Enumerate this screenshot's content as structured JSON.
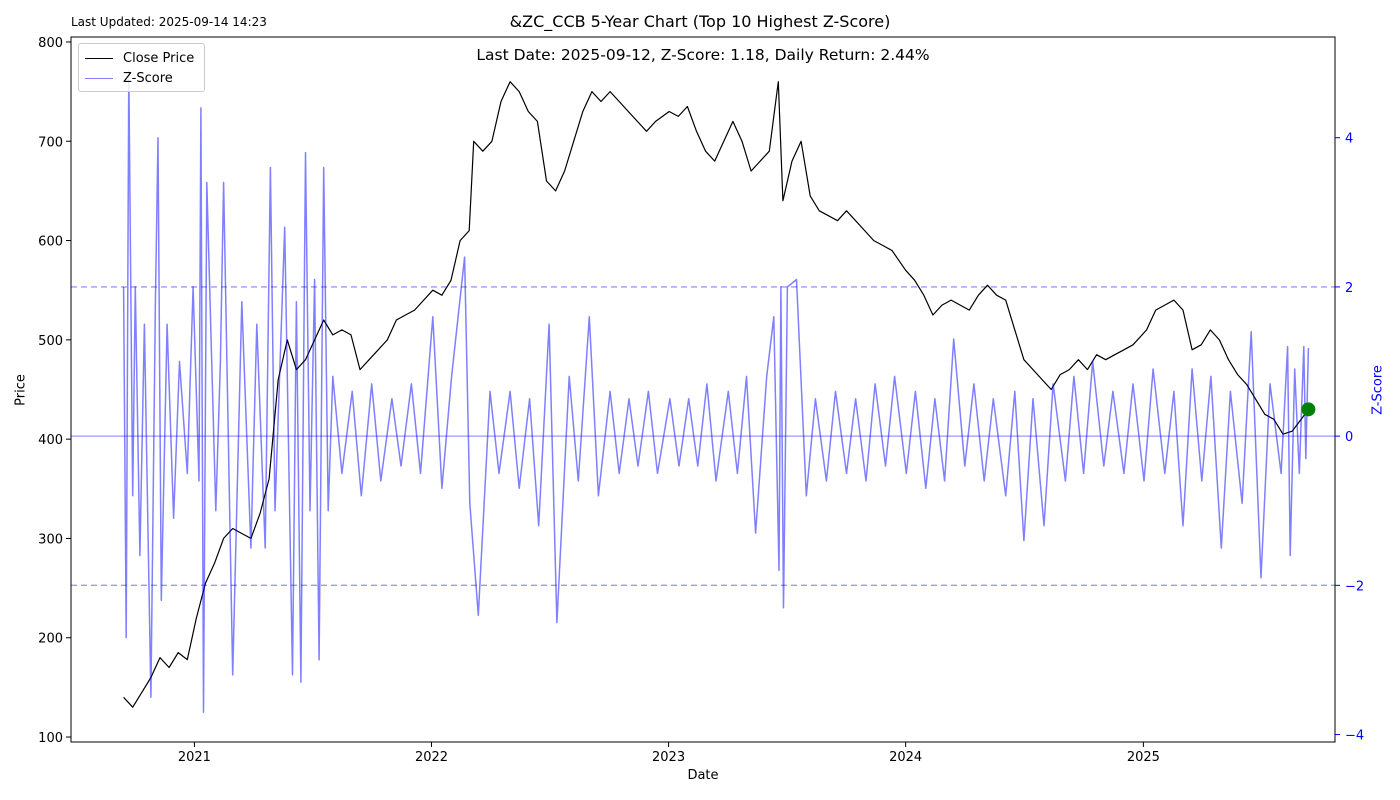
{
  "header": {
    "updated": "Last Updated: 2025-09-14 14:23",
    "title": "&ZC_CCB 5-Year Chart (Top 10 Highest Z-Score)",
    "subtitle": "Last Date: 2025-09-12, Z-Score: 1.18, Daily Return: 2.44%"
  },
  "colors": {
    "price": "#000000",
    "zscore": "#0000ff",
    "marker": "#008000"
  },
  "chart_data": {
    "type": "line",
    "xlabel": "Date",
    "ylabel": "Price",
    "y2label": "Z-Score",
    "xlim": [
      "2020-06-25",
      "2025-10-23"
    ],
    "ylim": [
      95,
      805
    ],
    "y2lim": [
      -4.1,
      5.35
    ],
    "x_ticks": [
      "2021",
      "2022",
      "2023",
      "2024",
      "2025"
    ],
    "y_ticks": [
      100,
      200,
      300,
      400,
      500,
      600,
      700,
      800
    ],
    "y2_ticks": [
      -4,
      -2,
      0,
      2,
      4
    ],
    "z_reference_lines": [
      -2,
      0,
      2
    ],
    "grid": false,
    "legend": "top-left",
    "series": [
      {
        "name": "Close Price",
        "axis": "left",
        "points": [
          [
            "2020-09-14",
            140
          ],
          [
            "2020-09-28",
            130
          ],
          [
            "2020-10-12",
            145
          ],
          [
            "2020-10-26",
            160
          ],
          [
            "2020-11-09",
            180
          ],
          [
            "2020-11-23",
            170
          ],
          [
            "2020-12-07",
            185
          ],
          [
            "2020-12-21",
            178
          ],
          [
            "2021-01-04",
            220
          ],
          [
            "2021-01-18",
            255
          ],
          [
            "2021-02-01",
            275
          ],
          [
            "2021-02-15",
            300
          ],
          [
            "2021-03-01",
            310
          ],
          [
            "2021-03-15",
            305
          ],
          [
            "2021-03-29",
            300
          ],
          [
            "2021-04-12",
            325
          ],
          [
            "2021-04-26",
            360
          ],
          [
            "2021-05-10",
            460
          ],
          [
            "2021-05-24",
            500
          ],
          [
            "2021-06-07",
            470
          ],
          [
            "2021-06-21",
            480
          ],
          [
            "2021-07-05",
            500
          ],
          [
            "2021-07-19",
            520
          ],
          [
            "2021-08-02",
            505
          ],
          [
            "2021-08-16",
            510
          ],
          [
            "2021-08-30",
            505
          ],
          [
            "2021-09-13",
            470
          ],
          [
            "2021-09-27",
            480
          ],
          [
            "2021-10-11",
            490
          ],
          [
            "2021-10-25",
            500
          ],
          [
            "2021-11-08",
            520
          ],
          [
            "2021-11-22",
            525
          ],
          [
            "2021-12-06",
            530
          ],
          [
            "2021-12-20",
            540
          ],
          [
            "2022-01-03",
            550
          ],
          [
            "2022-01-17",
            545
          ],
          [
            "2022-01-31",
            560
          ],
          [
            "2022-02-14",
            600
          ],
          [
            "2022-02-28",
            610
          ],
          [
            "2022-03-07",
            700
          ],
          [
            "2022-03-21",
            690
          ],
          [
            "2022-04-04",
            700
          ],
          [
            "2022-04-18",
            740
          ],
          [
            "2022-05-02",
            760
          ],
          [
            "2022-05-16",
            750
          ],
          [
            "2022-05-30",
            730
          ],
          [
            "2022-06-13",
            720
          ],
          [
            "2022-06-27",
            660
          ],
          [
            "2022-07-11",
            650
          ],
          [
            "2022-07-25",
            670
          ],
          [
            "2022-08-08",
            700
          ],
          [
            "2022-08-22",
            730
          ],
          [
            "2022-09-05",
            750
          ],
          [
            "2022-09-19",
            740
          ],
          [
            "2022-10-03",
            750
          ],
          [
            "2022-10-17",
            740
          ],
          [
            "2022-10-31",
            730
          ],
          [
            "2022-11-14",
            720
          ],
          [
            "2022-11-28",
            710
          ],
          [
            "2022-12-12",
            720
          ],
          [
            "2023-01-02",
            730
          ],
          [
            "2023-01-16",
            725
          ],
          [
            "2023-01-30",
            735
          ],
          [
            "2023-02-13",
            710
          ],
          [
            "2023-02-27",
            690
          ],
          [
            "2023-03-13",
            680
          ],
          [
            "2023-03-27",
            700
          ],
          [
            "2023-04-10",
            720
          ],
          [
            "2023-04-24",
            700
          ],
          [
            "2023-05-08",
            670
          ],
          [
            "2023-05-22",
            680
          ],
          [
            "2023-06-05",
            690
          ],
          [
            "2023-06-19",
            760
          ],
          [
            "2023-06-26",
            640
          ],
          [
            "2023-07-10",
            680
          ],
          [
            "2023-07-24",
            700
          ],
          [
            "2023-08-07",
            645
          ],
          [
            "2023-08-21",
            630
          ],
          [
            "2023-09-04",
            625
          ],
          [
            "2023-09-18",
            620
          ],
          [
            "2023-10-02",
            630
          ],
          [
            "2023-10-16",
            620
          ],
          [
            "2023-10-30",
            610
          ],
          [
            "2023-11-13",
            600
          ],
          [
            "2023-11-27",
            595
          ],
          [
            "2023-12-11",
            590
          ],
          [
            "2024-01-01",
            570
          ],
          [
            "2024-01-15",
            560
          ],
          [
            "2024-01-29",
            545
          ],
          [
            "2024-02-12",
            525
          ],
          [
            "2024-02-26",
            535
          ],
          [
            "2024-03-11",
            540
          ],
          [
            "2024-03-25",
            535
          ],
          [
            "2024-04-08",
            530
          ],
          [
            "2024-04-22",
            545
          ],
          [
            "2024-05-06",
            555
          ],
          [
            "2024-05-20",
            545
          ],
          [
            "2024-06-03",
            540
          ],
          [
            "2024-06-17",
            510
          ],
          [
            "2024-07-01",
            480
          ],
          [
            "2024-07-15",
            470
          ],
          [
            "2024-07-29",
            460
          ],
          [
            "2024-08-12",
            450
          ],
          [
            "2024-08-26",
            465
          ],
          [
            "2024-09-09",
            470
          ],
          [
            "2024-09-23",
            480
          ],
          [
            "2024-10-07",
            470
          ],
          [
            "2024-10-21",
            485
          ],
          [
            "2024-11-04",
            480
          ],
          [
            "2024-11-18",
            485
          ],
          [
            "2024-12-02",
            490
          ],
          [
            "2024-12-16",
            495
          ],
          [
            "2025-01-06",
            510
          ],
          [
            "2025-01-20",
            530
          ],
          [
            "2025-02-03",
            535
          ],
          [
            "2025-02-17",
            540
          ],
          [
            "2025-03-03",
            530
          ],
          [
            "2025-03-17",
            490
          ],
          [
            "2025-03-31",
            495
          ],
          [
            "2025-04-14",
            510
          ],
          [
            "2025-04-28",
            500
          ],
          [
            "2025-05-12",
            480
          ],
          [
            "2025-05-26",
            465
          ],
          [
            "2025-06-09",
            455
          ],
          [
            "2025-06-23",
            440
          ],
          [
            "2025-07-07",
            425
          ],
          [
            "2025-07-21",
            420
          ],
          [
            "2025-08-04",
            405
          ],
          [
            "2025-08-18",
            408
          ],
          [
            "2025-09-01",
            420
          ],
          [
            "2025-09-12",
            430
          ]
        ]
      },
      {
        "name": "Z-Score",
        "axis": "right",
        "points": [
          [
            "2020-09-14",
            2.0
          ],
          [
            "2020-09-18",
            -2.7
          ],
          [
            "2020-09-22",
            4.9
          ],
          [
            "2020-09-28",
            -0.8
          ],
          [
            "2020-10-02",
            2.0
          ],
          [
            "2020-10-09",
            -1.6
          ],
          [
            "2020-10-16",
            1.5
          ],
          [
            "2020-10-26",
            -3.5
          ],
          [
            "2020-11-02",
            1.8
          ],
          [
            "2020-11-06",
            4.0
          ],
          [
            "2020-11-11",
            -2.2
          ],
          [
            "2020-11-20",
            1.5
          ],
          [
            "2020-11-30",
            -1.1
          ],
          [
            "2020-12-09",
            1.0
          ],
          [
            "2020-12-21",
            -0.5
          ],
          [
            "2020-12-30",
            2.0
          ],
          [
            "2021-01-08",
            -0.6
          ],
          [
            "2021-01-11",
            4.4
          ],
          [
            "2021-01-15",
            -3.7
          ],
          [
            "2021-01-20",
            3.4
          ],
          [
            "2021-02-03",
            -1.0
          ],
          [
            "2021-02-10",
            1.0
          ],
          [
            "2021-02-15",
            3.4
          ],
          [
            "2021-03-01",
            -3.2
          ],
          [
            "2021-03-15",
            1.8
          ],
          [
            "2021-03-29",
            -1.5
          ],
          [
            "2021-04-07",
            1.5
          ],
          [
            "2021-04-20",
            -1.5
          ],
          [
            "2021-04-28",
            3.6
          ],
          [
            "2021-05-05",
            -1.0
          ],
          [
            "2021-05-20",
            2.8
          ],
          [
            "2021-06-01",
            -3.2
          ],
          [
            "2021-06-07",
            1.8
          ],
          [
            "2021-06-14",
            -3.3
          ],
          [
            "2021-06-21",
            3.8
          ],
          [
            "2021-06-28",
            -1.0
          ],
          [
            "2021-07-05",
            2.1
          ],
          [
            "2021-07-12",
            -3.0
          ],
          [
            "2021-07-19",
            3.6
          ],
          [
            "2021-07-26",
            -1.0
          ],
          [
            "2021-08-02",
            0.8
          ],
          [
            "2021-08-16",
            -0.5
          ],
          [
            "2021-09-01",
            0.6
          ],
          [
            "2021-09-15",
            -0.8
          ],
          [
            "2021-10-01",
            0.7
          ],
          [
            "2021-10-15",
            -0.6
          ],
          [
            "2021-11-01",
            0.5
          ],
          [
            "2021-11-15",
            -0.4
          ],
          [
            "2021-12-01",
            0.7
          ],
          [
            "2021-12-15",
            -0.5
          ],
          [
            "2022-01-03",
            1.6
          ],
          [
            "2022-01-17",
            -0.7
          ],
          [
            "2022-02-01",
            0.8
          ],
          [
            "2022-02-21",
            2.4
          ],
          [
            "2022-03-01",
            -0.9
          ],
          [
            "2022-03-14",
            -2.4
          ],
          [
            "2022-04-01",
            0.6
          ],
          [
            "2022-04-15",
            -0.5
          ],
          [
            "2022-05-02",
            0.6
          ],
          [
            "2022-05-16",
            -0.7
          ],
          [
            "2022-06-01",
            0.5
          ],
          [
            "2022-06-15",
            -1.2
          ],
          [
            "2022-07-01",
            1.5
          ],
          [
            "2022-07-13",
            -2.5
          ],
          [
            "2022-08-01",
            0.8
          ],
          [
            "2022-08-15",
            -0.6
          ],
          [
            "2022-09-01",
            1.6
          ],
          [
            "2022-09-15",
            -0.8
          ],
          [
            "2022-10-03",
            0.6
          ],
          [
            "2022-10-17",
            -0.5
          ],
          [
            "2022-11-01",
            0.5
          ],
          [
            "2022-11-15",
            -0.4
          ],
          [
            "2022-12-01",
            0.6
          ],
          [
            "2022-12-15",
            -0.5
          ],
          [
            "2023-01-03",
            0.5
          ],
          [
            "2023-01-17",
            -0.4
          ],
          [
            "2023-02-01",
            0.5
          ],
          [
            "2023-02-15",
            -0.4
          ],
          [
            "2023-03-01",
            0.7
          ],
          [
            "2023-03-15",
            -0.6
          ],
          [
            "2023-04-03",
            0.6
          ],
          [
            "2023-04-17",
            -0.5
          ],
          [
            "2023-05-01",
            0.8
          ],
          [
            "2023-05-15",
            -1.3
          ],
          [
            "2023-06-01",
            0.8
          ],
          [
            "2023-06-12",
            1.6
          ],
          [
            "2023-06-20",
            -1.8
          ],
          [
            "2023-06-23",
            2.0
          ],
          [
            "2023-06-27",
            -2.3
          ],
          [
            "2023-07-03",
            2.0
          ],
          [
            "2023-07-17",
            2.1
          ],
          [
            "2023-08-01",
            -0.8
          ],
          [
            "2023-08-15",
            0.5
          ],
          [
            "2023-09-01",
            -0.6
          ],
          [
            "2023-09-15",
            0.6
          ],
          [
            "2023-10-02",
            -0.5
          ],
          [
            "2023-10-16",
            0.5
          ],
          [
            "2023-11-01",
            -0.6
          ],
          [
            "2023-11-15",
            0.7
          ],
          [
            "2023-12-01",
            -0.4
          ],
          [
            "2023-12-15",
            0.8
          ],
          [
            "2024-01-02",
            -0.5
          ],
          [
            "2024-01-16",
            0.6
          ],
          [
            "2024-02-01",
            -0.7
          ],
          [
            "2024-02-15",
            0.5
          ],
          [
            "2024-03-01",
            -0.6
          ],
          [
            "2024-03-15",
            1.3
          ],
          [
            "2024-04-01",
            -0.4
          ],
          [
            "2024-04-15",
            0.7
          ],
          [
            "2024-05-01",
            -0.6
          ],
          [
            "2024-05-15",
            0.5
          ],
          [
            "2024-06-03",
            -0.8
          ],
          [
            "2024-06-17",
            0.6
          ],
          [
            "2024-07-01",
            -1.4
          ],
          [
            "2024-07-15",
            0.5
          ],
          [
            "2024-08-01",
            -1.2
          ],
          [
            "2024-08-15",
            0.7
          ],
          [
            "2024-09-03",
            -0.6
          ],
          [
            "2024-09-16",
            0.8
          ],
          [
            "2024-10-01",
            -0.5
          ],
          [
            "2024-10-15",
            1.0
          ],
          [
            "2024-11-01",
            -0.4
          ],
          [
            "2024-11-15",
            0.6
          ],
          [
            "2024-12-02",
            -0.5
          ],
          [
            "2024-12-16",
            0.7
          ],
          [
            "2025-01-02",
            -0.6
          ],
          [
            "2025-01-16",
            0.9
          ],
          [
            "2025-02-03",
            -0.5
          ],
          [
            "2025-02-17",
            0.6
          ],
          [
            "2025-03-03",
            -1.2
          ],
          [
            "2025-03-17",
            0.9
          ],
          [
            "2025-04-01",
            -0.6
          ],
          [
            "2025-04-15",
            0.8
          ],
          [
            "2025-05-01",
            -1.5
          ],
          [
            "2025-05-15",
            0.6
          ],
          [
            "2025-06-02",
            -0.9
          ],
          [
            "2025-06-16",
            1.4
          ],
          [
            "2025-07-01",
            -1.9
          ],
          [
            "2025-07-15",
            0.7
          ],
          [
            "2025-08-01",
            -0.5
          ],
          [
            "2025-08-11",
            1.2
          ],
          [
            "2025-08-15",
            -1.6
          ],
          [
            "2025-08-22",
            0.9
          ],
          [
            "2025-08-29",
            -0.5
          ],
          [
            "2025-09-05",
            1.2
          ],
          [
            "2025-09-08",
            -0.3
          ],
          [
            "2025-09-12",
            1.18
          ]
        ]
      }
    ],
    "marker": {
      "date": "2025-09-12",
      "price": 430
    }
  }
}
